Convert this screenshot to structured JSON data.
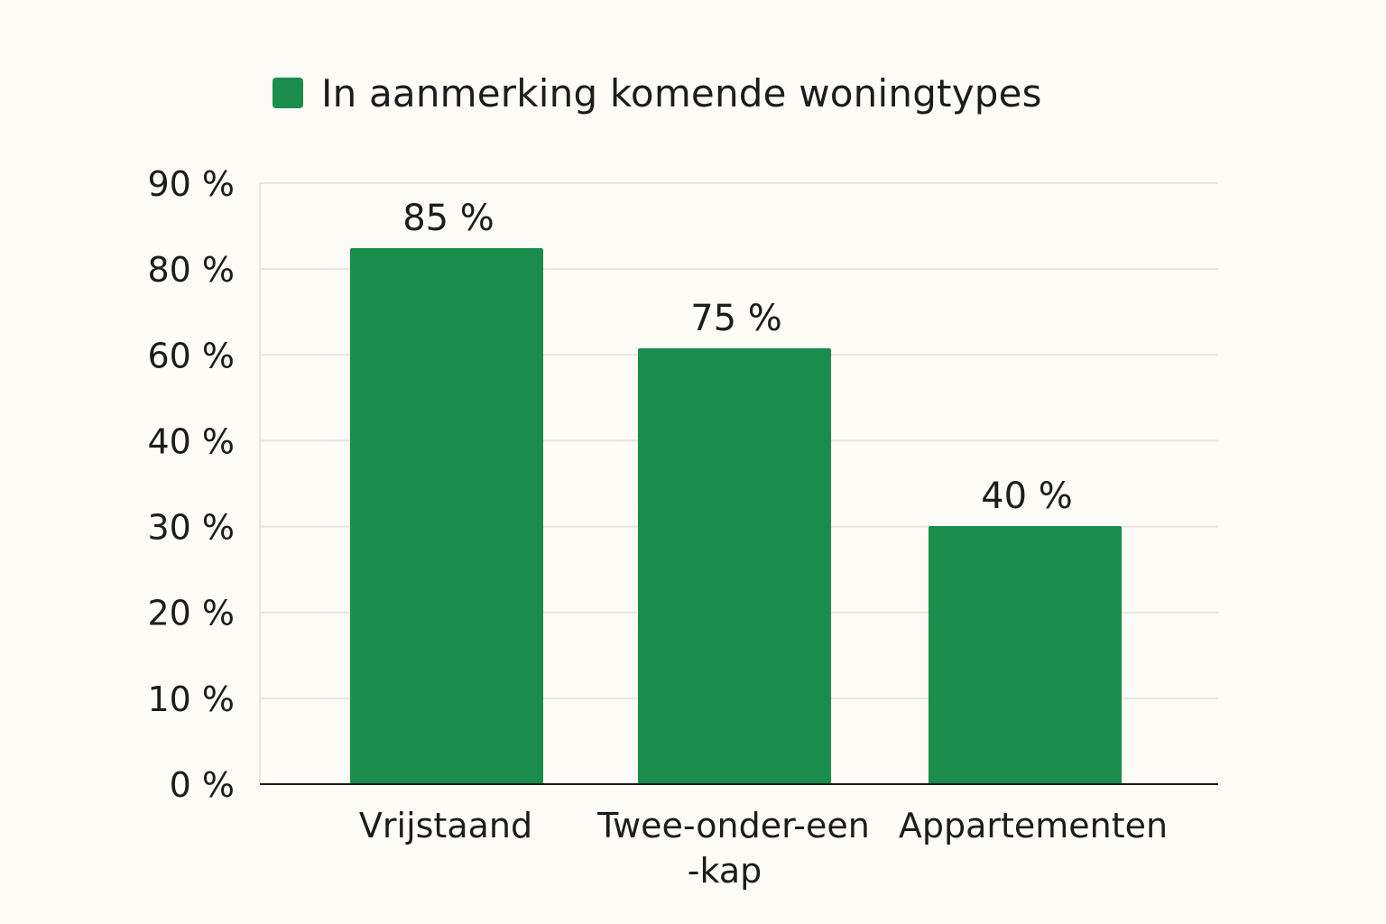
{
  "chart_data": {
    "type": "bar",
    "categories": [
      "Vrijstaand",
      "Twee-onder-een-kap",
      "Appartementen"
    ],
    "category_lines": [
      [
        "Vrijstaand"
      ],
      [
        "Twee-onder-een",
        "-kap"
      ],
      [
        "Appartementen"
      ]
    ],
    "series": [
      {
        "name": "In aanmerking komende woningtypes",
        "values": [
          85,
          75,
          40
        ],
        "value_labels": [
          "85 %",
          "75 %",
          "40 %"
        ],
        "color": "#1a8c4b"
      }
    ],
    "y_ticks": [
      0,
      10,
      20,
      30,
      40,
      60,
      80,
      90
    ],
    "y_tick_labels": [
      "0 %",
      "10 %",
      "20 %",
      "30 %",
      "40 %",
      "60 %",
      "80 %",
      "90 %"
    ],
    "title": "",
    "xlabel": "",
    "ylabel": "",
    "grid": true,
    "legend_position": "top"
  },
  "colors": {
    "bar": "#1a8c4b",
    "grid": "#e6e6e0",
    "axis": "#1c1c1c",
    "background": "#fdfcf7"
  }
}
